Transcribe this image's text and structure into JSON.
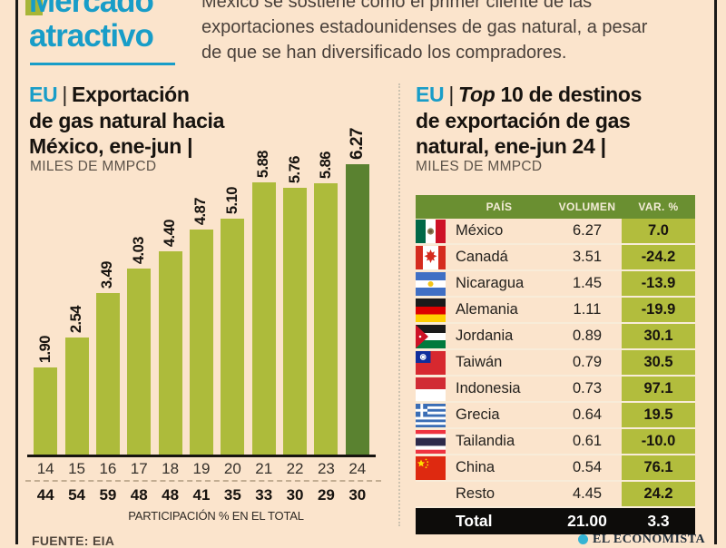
{
  "header": {
    "kicker_line1": "Mercado",
    "kicker_line2": "atractivo",
    "intro_line1": "México se sostiene como el primer cliente de las",
    "intro_line2": "exportaciones estadounidenses de gas natural, a pesar",
    "intro_line3": "de que se han diversificado los compradores."
  },
  "colors": {
    "background": "#fbe4cc",
    "teal_accent": "#189dc8",
    "bar_green": "#adbb3b",
    "bar_highlight_green": "#5a8230",
    "table_header_green": "#6a8f31",
    "var_column_green": "#b2bd3d",
    "total_row_black": "#0d0c0a"
  },
  "left_panel": {
    "region": "EU",
    "sep": "|",
    "title_line1": "Exportación",
    "title_line2": "de gas natural hacia",
    "title_line3": "México, ene-jun |",
    "unit": "MILES DE MMPCD"
  },
  "right_panel": {
    "region": "EU",
    "sep": "|",
    "title_line1_italic": "Top",
    "title_line1_rest": "10 de destinos",
    "title_line2": "de exportación de gas",
    "title_line3": "natural, ene-jun 24 |",
    "unit": "MILES DE MMPCD"
  },
  "chart_data": [
    {
      "type": "bar",
      "title": "EU | Exportación de gas natural hacia México, ene-jun",
      "ylabel": "MILES DE MMPCD",
      "categories": [
        "14",
        "15",
        "16",
        "17",
        "18",
        "19",
        "20",
        "21",
        "22",
        "23",
        "24"
      ],
      "values": [
        1.9,
        2.54,
        3.49,
        4.03,
        4.4,
        4.87,
        5.1,
        5.88,
        5.76,
        5.86,
        6.27
      ],
      "value_labels": [
        "1.90",
        "2.54",
        "3.49",
        "4.03",
        "4.40",
        "4.87",
        "5.10",
        "5.88",
        "5.76",
        "5.86",
        "6.27"
      ],
      "participation_pct": [
        44,
        54,
        59,
        48,
        48,
        41,
        35,
        33,
        30,
        29,
        30
      ],
      "participation_labels": [
        "44",
        "54",
        "59",
        "48",
        "48",
        "41",
        "35",
        "33",
        "30",
        "29",
        "30"
      ],
      "participation_caption": "PARTICIPACIÓN % EN EL TOTAL",
      "bar_color": "#adbb3b",
      "highlight_color": "#5a8230",
      "highlight_index": 10,
      "ylim": [
        0,
        6.5
      ],
      "grid": false
    },
    {
      "type": "table",
      "title": "EU | Top 10 de destinos de exportación de gas natural, ene-jun 24",
      "unit": "MILES DE MMPCD",
      "columns": [
        "PAÍS",
        "VOLUMEN",
        "VAR. %"
      ],
      "rows": [
        {
          "country": "México",
          "volumen": "6.27",
          "var_pct": "7.0"
        },
        {
          "country": "Canadá",
          "volumen": "3.51",
          "var_pct": "-24.2"
        },
        {
          "country": "Nicaragua",
          "volumen": "1.45",
          "var_pct": "-13.9"
        },
        {
          "country": "Alemania",
          "volumen": "1.11",
          "var_pct": "-19.9"
        },
        {
          "country": "Jordania",
          "volumen": "0.89",
          "var_pct": "30.1"
        },
        {
          "country": "Taiwán",
          "volumen": "0.79",
          "var_pct": "30.5"
        },
        {
          "country": "Indonesia",
          "volumen": "0.73",
          "var_pct": "97.1"
        },
        {
          "country": "Grecia",
          "volumen": "0.64",
          "var_pct": "19.5"
        },
        {
          "country": "Tailandia",
          "volumen": "0.61",
          "var_pct": "-10.0"
        },
        {
          "country": "China",
          "volumen": "0.54",
          "var_pct": "76.1"
        },
        {
          "country": "Resto",
          "volumen": "4.45",
          "var_pct": "24.2"
        }
      ],
      "total": {
        "label": "Total",
        "volumen": "21.00",
        "var_pct": "3.3"
      }
    }
  ],
  "footer": {
    "source": "FUENTE: EIA",
    "brand": "EL ECONOMISTA"
  }
}
